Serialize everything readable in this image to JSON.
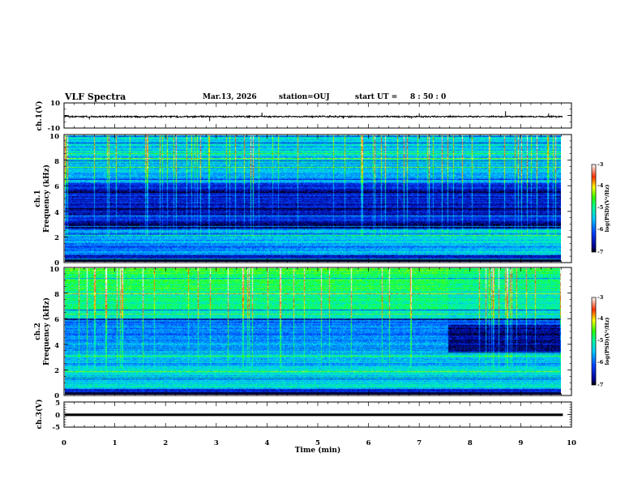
{
  "header": {
    "title": "VLF Spectra",
    "date": "Mar.13, 2026",
    "station": "station=OUJ",
    "start_label": "start  UT =",
    "start_time": "8 : 50 : 0"
  },
  "chart_data": [
    {
      "type": "line",
      "name": "ch1-waveform",
      "ylabel": "ch.1(V)",
      "ylim": [
        -10,
        10
      ],
      "y_ticks": [
        "10",
        "-10"
      ],
      "baseline": -0.9,
      "noise": 0.45,
      "spikes_min": [
        0.5,
        1.6,
        2.87,
        3.9,
        5.5,
        6.85,
        7.0,
        8.7,
        9.55
      ],
      "spike_values": [
        -3.2,
        -2.4,
        -4.5,
        2.3,
        -2.6,
        -2.5,
        1.8,
        3.4,
        1.7
      ]
    },
    {
      "type": "heatmap",
      "name": "ch1-spectrogram",
      "ylabel_top": "ch.1",
      "ylabel": "Frequency (kHz)",
      "ylim": [
        0,
        10
      ],
      "y_ticks": [
        "0",
        "2",
        "4",
        "6",
        "8",
        "10"
      ],
      "colorbar": {
        "label": "log(PSD)(V²/Hz)",
        "ticks": [
          "-3",
          "-4",
          "-5",
          "-6",
          "-7"
        ],
        "range": [
          -7,
          -3
        ]
      }
    },
    {
      "type": "heatmap",
      "name": "ch2-spectrogram",
      "ylabel_top": "ch.2",
      "ylabel": "Frequency (kHz)",
      "ylim": [
        0,
        10
      ],
      "y_ticks": [
        "0",
        "2",
        "4",
        "6",
        "8",
        "10"
      ],
      "transition_min": 7.55,
      "colorbar": {
        "label": "log(PSD)(V²/Hz)",
        "ticks": [
          "-3",
          "-4",
          "-5",
          "-6",
          "-7"
        ],
        "range": [
          -7,
          -3
        ]
      }
    },
    {
      "type": "line",
      "name": "ch3-waveform",
      "ylabel": "ch.3(V)",
      "ylim": [
        -5,
        5
      ],
      "y_ticks": [
        "5",
        "0",
        "-5"
      ],
      "baseline": -0.1,
      "band_width": 1.0
    }
  ],
  "x_axis": {
    "label": "Time (min)",
    "range": [
      0,
      10
    ],
    "data_end": 9.83,
    "ticks": [
      "0",
      "1",
      "2",
      "3",
      "4",
      "5",
      "6",
      "7",
      "8",
      "9",
      "10"
    ]
  }
}
